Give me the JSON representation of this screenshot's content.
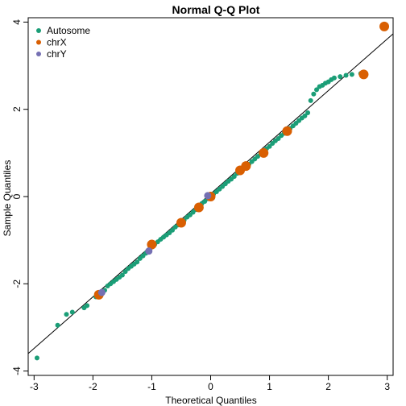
{
  "chart_data": {
    "type": "scatter",
    "title": "Normal Q-Q Plot",
    "xlabel": "Theoretical Quantiles",
    "ylabel": "Sample Quantiles",
    "xlim": [
      -3.1,
      3.1
    ],
    "ylim": [
      -4.1,
      4.1
    ],
    "xticks": [
      "-3",
      "-2",
      "-1",
      "0",
      "1",
      "2",
      "3"
    ],
    "yticks": [
      "-4",
      "-2",
      "0",
      "2",
      "4"
    ],
    "grid": false,
    "legend_position": "top-left",
    "reference_line": {
      "x": [
        -3.1,
        3.1
      ],
      "y": [
        -3.6,
        3.73
      ]
    },
    "series": [
      {
        "name": "Autosome",
        "color": "#1b9e77",
        "marker_size": "small",
        "points": [
          [
            -2.95,
            -3.7
          ],
          [
            -2.6,
            -2.95
          ],
          [
            -2.45,
            -2.7
          ],
          [
            -2.35,
            -2.65
          ],
          [
            -2.15,
            -2.55
          ],
          [
            -2.1,
            -2.5
          ],
          [
            -1.95,
            -2.3
          ],
          [
            -1.9,
            -2.25
          ],
          [
            -1.85,
            -2.2
          ],
          [
            -1.8,
            -2.15
          ],
          [
            -1.75,
            -2.05
          ],
          [
            -1.7,
            -2.0
          ],
          [
            -1.65,
            -1.95
          ],
          [
            -1.6,
            -1.9
          ],
          [
            -1.55,
            -1.85
          ],
          [
            -1.5,
            -1.8
          ],
          [
            -1.45,
            -1.72
          ],
          [
            -1.4,
            -1.65
          ],
          [
            -1.35,
            -1.6
          ],
          [
            -1.3,
            -1.55
          ],
          [
            -1.25,
            -1.5
          ],
          [
            -1.2,
            -1.42
          ],
          [
            -1.15,
            -1.36
          ],
          [
            -1.1,
            -1.3
          ],
          [
            -1.05,
            -1.22
          ],
          [
            -1.0,
            -1.16
          ],
          [
            -0.95,
            -1.1
          ],
          [
            -0.9,
            -1.04
          ],
          [
            -0.85,
            -0.98
          ],
          [
            -0.8,
            -0.93
          ],
          [
            -0.75,
            -0.88
          ],
          [
            -0.7,
            -0.83
          ],
          [
            -0.65,
            -0.77
          ],
          [
            -0.6,
            -0.7
          ],
          [
            -0.55,
            -0.65
          ],
          [
            -0.5,
            -0.6
          ],
          [
            -0.45,
            -0.54
          ],
          [
            -0.4,
            -0.47
          ],
          [
            -0.35,
            -0.42
          ],
          [
            -0.3,
            -0.36
          ],
          [
            -0.25,
            -0.3
          ],
          [
            -0.2,
            -0.23
          ],
          [
            -0.15,
            -0.16
          ],
          [
            -0.1,
            -0.11
          ],
          [
            -0.05,
            -0.05
          ],
          [
            0.0,
            0.0
          ],
          [
            0.05,
            0.06
          ],
          [
            0.1,
            0.11
          ],
          [
            0.15,
            0.17
          ],
          [
            0.2,
            0.23
          ],
          [
            0.25,
            0.29
          ],
          [
            0.3,
            0.35
          ],
          [
            0.35,
            0.4
          ],
          [
            0.4,
            0.46
          ],
          [
            0.45,
            0.53
          ],
          [
            0.5,
            0.59
          ],
          [
            0.55,
            0.64
          ],
          [
            0.6,
            0.69
          ],
          [
            0.65,
            0.74
          ],
          [
            0.7,
            0.8
          ],
          [
            0.75,
            0.86
          ],
          [
            0.8,
            0.92
          ],
          [
            0.85,
            0.98
          ],
          [
            0.9,
            1.04
          ],
          [
            0.95,
            1.1
          ],
          [
            1.0,
            1.15
          ],
          [
            1.05,
            1.22
          ],
          [
            1.1,
            1.28
          ],
          [
            1.15,
            1.33
          ],
          [
            1.2,
            1.4
          ],
          [
            1.25,
            1.45
          ],
          [
            1.3,
            1.5
          ],
          [
            1.35,
            1.56
          ],
          [
            1.4,
            1.62
          ],
          [
            1.45,
            1.68
          ],
          [
            1.5,
            1.74
          ],
          [
            1.55,
            1.8
          ],
          [
            1.6,
            1.85
          ],
          [
            1.65,
            1.92
          ],
          [
            1.7,
            2.2
          ],
          [
            1.75,
            2.35
          ],
          [
            1.8,
            2.45
          ],
          [
            1.85,
            2.52
          ],
          [
            1.9,
            2.55
          ],
          [
            1.95,
            2.6
          ],
          [
            2.0,
            2.63
          ],
          [
            2.05,
            2.68
          ],
          [
            2.1,
            2.72
          ],
          [
            2.2,
            2.75
          ],
          [
            2.3,
            2.78
          ],
          [
            2.4,
            2.8
          ],
          [
            2.55,
            2.82
          ]
        ]
      },
      {
        "name": "chrX",
        "color": "#d95f02",
        "marker_size": "large",
        "points": [
          [
            -1.9,
            -2.25
          ],
          [
            -1.0,
            -1.1
          ],
          [
            -0.5,
            -0.6
          ],
          [
            -0.2,
            -0.25
          ],
          [
            0.0,
            0.0
          ],
          [
            0.5,
            0.6
          ],
          [
            0.6,
            0.7
          ],
          [
            0.9,
            1.0
          ],
          [
            1.3,
            1.5
          ],
          [
            2.6,
            2.8
          ],
          [
            2.95,
            3.9
          ]
        ]
      },
      {
        "name": "chrY",
        "color": "#7570b3",
        "marker_size": "medium",
        "points": [
          [
            -1.85,
            -2.2
          ],
          [
            -1.05,
            -1.25
          ],
          [
            -0.05,
            0.02
          ]
        ]
      }
    ]
  }
}
